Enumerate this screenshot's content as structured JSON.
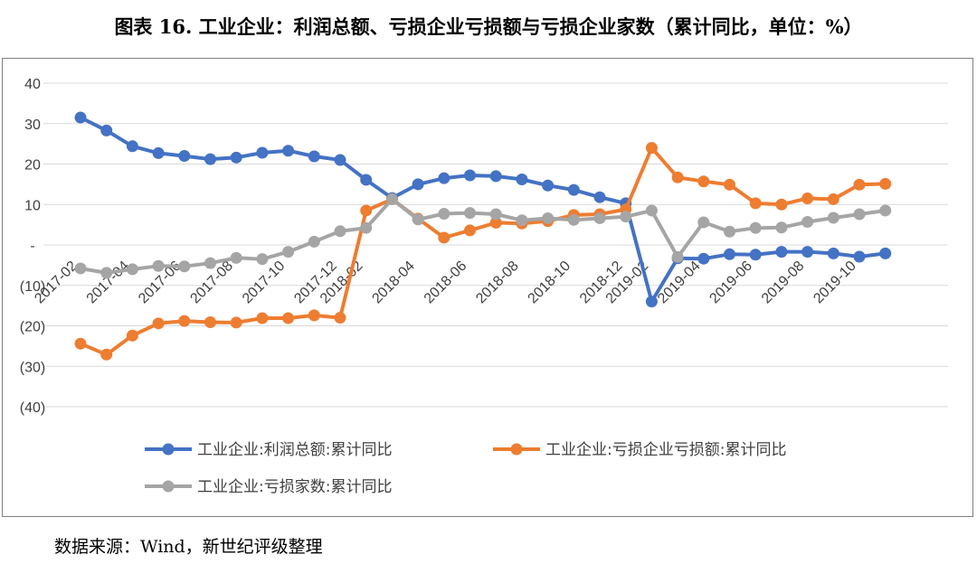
{
  "title": "图表 16. 工业企业：利润总额、亏损企业亏损额与亏损企业家数（累计同比，单位：%）",
  "source": "数据来源：Wind，新世纪评级整理",
  "chart_data": {
    "type": "line",
    "title": "图表 16. 工业企业：利润总额、亏损企业亏损额与亏损企业家数（累计同比，单位：%）",
    "ylim": [
      -40,
      40
    ],
    "yticks": [
      40,
      30,
      20,
      10,
      0,
      -10,
      -20,
      -30,
      -40
    ],
    "ytick_labels": [
      "40",
      "30",
      "20",
      "10",
      "-",
      "(10)",
      "(20)",
      "(30)",
      "(40)"
    ],
    "grid": true,
    "legend_position": "bottom",
    "x": [
      "2017-02",
      "2017-03",
      "2017-04",
      "2017-05",
      "2017-06",
      "2017-07",
      "2017-08",
      "2017-09",
      "2017-10",
      "2017-11",
      "2017-12",
      "2018-02",
      "2018-03",
      "2018-04",
      "2018-05",
      "2018-06",
      "2018-07",
      "2018-08",
      "2018-09",
      "2018-10",
      "2018-11",
      "2018-12",
      "2019-02",
      "2019-03",
      "2019-04",
      "2019-05",
      "2019-06",
      "2019-07",
      "2019-08",
      "2019-09",
      "2019-10",
      "2019-11"
    ],
    "xtick_labels": [
      "2017-02",
      "2017-04",
      "2017-06",
      "2017-08",
      "2017-10",
      "2017-12",
      "2018-02",
      "2018-04",
      "2018-06",
      "2018-08",
      "2018-10",
      "2018-12",
      "2019-02",
      "2019-04",
      "2019-06",
      "2019-08",
      "2019-10"
    ],
    "series": [
      {
        "name": "工业企业:利润总额:累计同比",
        "color": "#4472C4",
        "values": [
          31.5,
          28.3,
          24.4,
          22.7,
          22.0,
          21.2,
          21.6,
          22.8,
          23.3,
          21.9,
          21.0,
          16.1,
          11.6,
          15.0,
          16.5,
          17.2,
          17.0,
          16.2,
          14.7,
          13.6,
          11.8,
          10.3,
          -14.0,
          -3.3,
          -3.4,
          -2.3,
          -2.4,
          -1.7,
          -1.7,
          -2.1,
          -2.9,
          -2.1
        ]
      },
      {
        "name": "工业企业:亏损企业亏损额:累计同比",
        "color": "#ED7D31",
        "values": [
          -24.4,
          -27.1,
          -22.4,
          -19.4,
          -18.8,
          -19.1,
          -19.2,
          -18.1,
          -18.1,
          -17.4,
          -18.0,
          8.5,
          11.3,
          6.5,
          1.8,
          3.6,
          5.5,
          5.3,
          5.9,
          7.4,
          7.6,
          8.8,
          24.0,
          16.7,
          15.7,
          14.9,
          10.3,
          10.0,
          11.5,
          11.3,
          14.9,
          15.1
        ]
      },
      {
        "name": "工业企业:亏损家数:累计同比",
        "color": "#A5A5A5",
        "values": [
          -5.8,
          -6.9,
          -6.0,
          -5.2,
          -5.3,
          -4.5,
          -3.2,
          -3.5,
          -1.7,
          0.8,
          3.4,
          4.2,
          11.3,
          6.3,
          7.7,
          7.9,
          7.6,
          6.1,
          6.6,
          6.2,
          6.6,
          7.0,
          8.5,
          -3.0,
          5.6,
          3.3,
          4.2,
          4.3,
          5.7,
          6.7,
          7.6,
          8.5
        ]
      }
    ]
  }
}
